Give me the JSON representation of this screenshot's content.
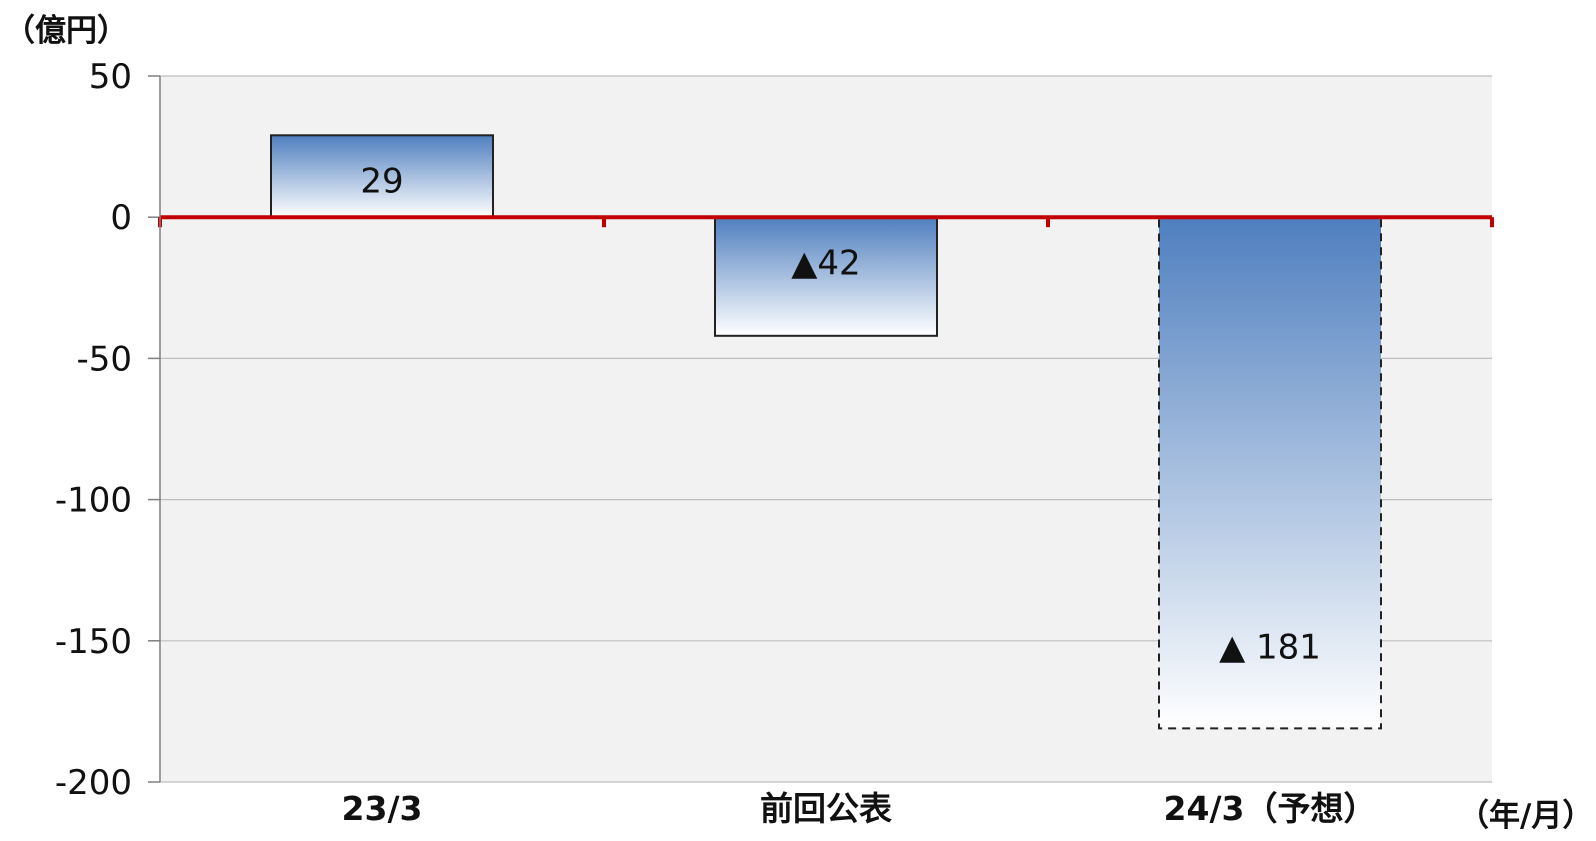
{
  "chart_data": {
    "type": "bar",
    "y_unit": "（億円）",
    "x_unit": "（年/月）",
    "categories": [
      "23/3",
      "前回公表",
      "24/3（予想）"
    ],
    "values": [
      29,
      -42,
      -181
    ],
    "data_labels": [
      "29",
      "▲42",
      "▲ 181"
    ],
    "y_ticks": [
      "50",
      "0",
      "-50",
      "-100",
      "-150",
      "-200"
    ],
    "ylim": [
      -200,
      50
    ],
    "grid": true,
    "bar_gradient": {
      "top": "#4f7fbf",
      "bottom": "#ffffff"
    },
    "zero_line_color": "#c00000",
    "plot_background": "#f2f2f2",
    "forecast_bar_border": "dashed"
  }
}
